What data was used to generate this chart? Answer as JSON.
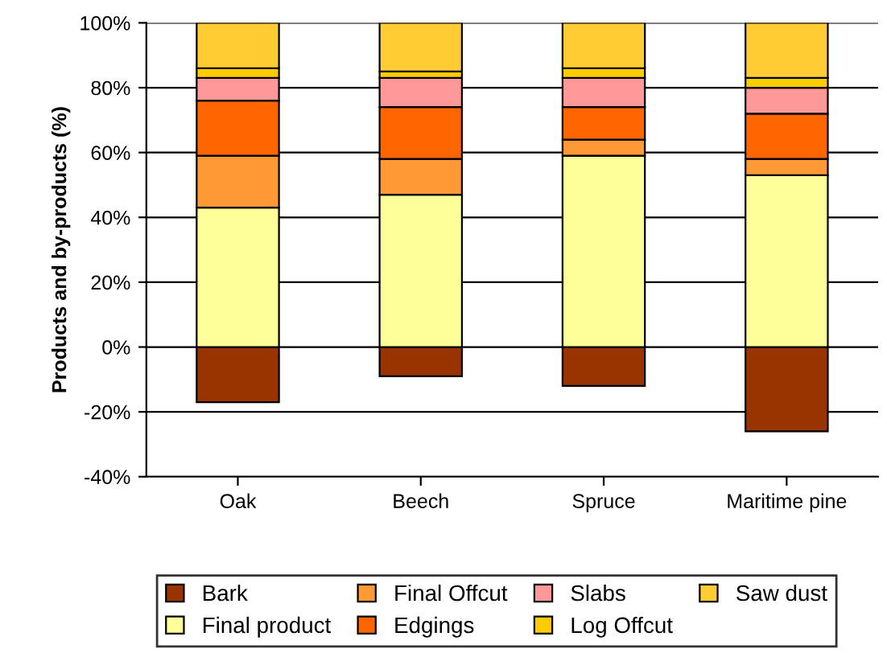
{
  "chart_data": {
    "type": "bar",
    "stacked": true,
    "ylabel": "Products and by-products (%)",
    "categories": [
      "Oak",
      "Beech",
      "Spruce",
      "Maritime pine"
    ],
    "series": [
      {
        "name": "Bark",
        "color": "#993300",
        "values": [
          -17,
          -9,
          -12,
          -26
        ]
      },
      {
        "name": "Final product",
        "color": "#ffff99",
        "values": [
          43,
          47,
          59,
          53
        ]
      },
      {
        "name": "Final Offcut",
        "color": "#ff9933",
        "values": [
          16,
          11,
          5,
          5
        ]
      },
      {
        "name": "Edgings",
        "color": "#ff6600",
        "values": [
          17,
          16,
          10,
          14
        ]
      },
      {
        "name": "Slabs",
        "color": "#ff9999",
        "values": [
          7,
          9,
          9,
          8
        ]
      },
      {
        "name": "Log Offcut",
        "color": "#ffcc00",
        "values": [
          3,
          2,
          3,
          3
        ]
      },
      {
        "name": "Saw dust",
        "color": "#ffcc33",
        "values": [
          14,
          15,
          14,
          17
        ]
      }
    ],
    "ylim": [
      -40,
      100
    ],
    "yticks": [
      {
        "value": -40,
        "label": "-40%"
      },
      {
        "value": -20,
        "label": "-20%"
      },
      {
        "value": 0,
        "label": "0%"
      },
      {
        "value": 20,
        "label": "20%"
      },
      {
        "value": 40,
        "label": "40%"
      },
      {
        "value": 60,
        "label": "60%"
      },
      {
        "value": 80,
        "label": "80%"
      },
      {
        "value": 100,
        "label": "100%"
      }
    ],
    "grid": "y",
    "legend": "bottom"
  }
}
